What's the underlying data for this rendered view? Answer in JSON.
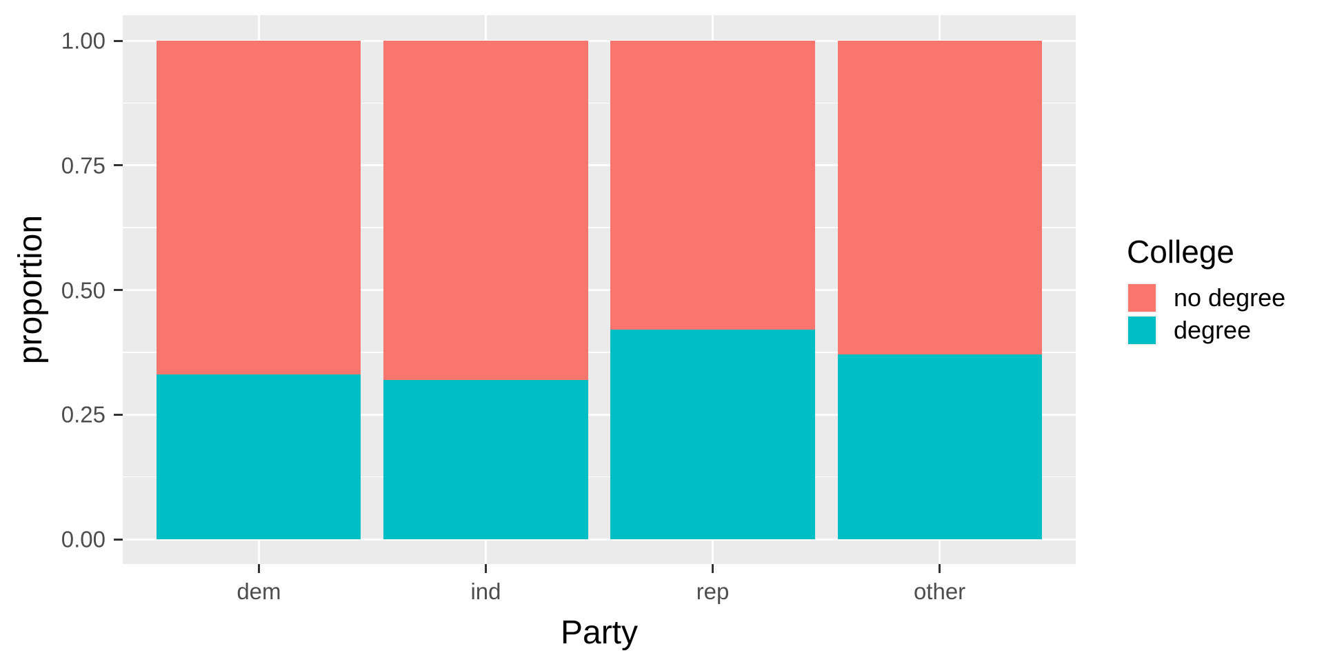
{
  "chart_data": {
    "type": "bar",
    "stacked": true,
    "normalized": true,
    "title": "",
    "xlabel": "Party",
    "ylabel": "proportion",
    "legend_title": "College",
    "categories": [
      "dem",
      "ind",
      "rep",
      "other"
    ],
    "series": [
      {
        "name": "no degree",
        "color": "#F8766D",
        "values": [
          0.67,
          0.68,
          0.58,
          0.63
        ]
      },
      {
        "name": "degree",
        "color": "#00BFC4",
        "values": [
          0.33,
          0.32,
          0.42,
          0.37
        ]
      }
    ],
    "ylim": [
      0,
      1
    ],
    "y_ticks": [
      {
        "value": 0.0,
        "label": "0.00"
      },
      {
        "value": 0.25,
        "label": "0.25"
      },
      {
        "value": 0.5,
        "label": "0.50"
      },
      {
        "value": 0.75,
        "label": "0.75"
      },
      {
        "value": 1.0,
        "label": "1.00"
      }
    ],
    "y_minor_ticks": [
      0.125,
      0.375,
      0.625,
      0.875
    ],
    "layout_hints": {
      "legend_position": "right",
      "grid": "horizontal major + minor, vertical major at category centers",
      "bar_relative_width": 0.9
    }
  },
  "colors": {
    "page_background": "#FFFFFF",
    "panel_background": "#EBEBEB",
    "grid": "#FFFFFF",
    "tick_mark": "#333333",
    "tick_label": "#4D4D4D",
    "axis_title": "#000000",
    "no_degree_fill": "#F8766D",
    "degree_fill": "#00BFC4"
  }
}
